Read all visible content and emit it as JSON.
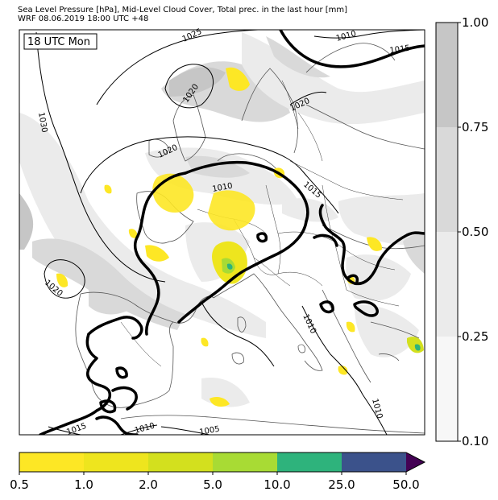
{
  "header": {
    "title_line1": "Sea Level Pressure [hPa], Mid-Level Cloud Cover, Total prec. in the last hour [mm]",
    "title_line2": "WRF 08.06.2019 18:00 UTC +48"
  },
  "map": {
    "time_label": "18 UTC Mon",
    "isobar_labels": [
      "1030",
      "1025",
      "1020",
      "1020",
      "1020",
      "1020",
      "1015",
      "1010",
      "1010",
      "1015",
      "1010",
      "1010",
      "1005",
      "1015",
      "1010"
    ],
    "colors": {
      "land_line": "#555555",
      "cloud_dark": "#bdbdbd",
      "cloud_mid": "#d6d6d6",
      "cloud_light": "#ebebeb"
    }
  },
  "cloud_colorbar": {
    "ticks": [
      "1.00",
      "0.75",
      "0.50",
      "0.25",
      "0.10"
    ],
    "colors": [
      "#c6c6c6",
      "#d9d9d9",
      "#ebebeb",
      "#f7f7f7"
    ]
  },
  "precip_colorbar": {
    "ticks": [
      "0.5",
      "1.0",
      "2.0",
      "5.0",
      "10.0",
      "25.0",
      "50.0"
    ],
    "colors": [
      "#fde725",
      "#eee51e",
      "#d3e01e",
      "#a8db34",
      "#2eb37c",
      "#3b528b",
      "#440154"
    ]
  }
}
